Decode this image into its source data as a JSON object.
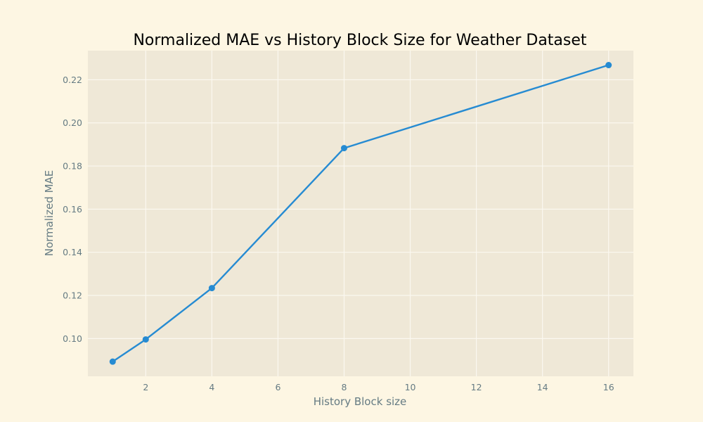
{
  "chart_data": {
    "type": "line",
    "title": "Normalized MAE vs History Block Size for Weather Dataset",
    "xlabel": "History Block size",
    "ylabel": "Normalized MAE",
    "x": [
      1,
      2,
      4,
      8,
      16
    ],
    "series": [
      {
        "values": [
          0.0893,
          0.0996,
          0.1234,
          0.1883,
          0.2268
        ]
      }
    ],
    "xlim": [
      0.25,
      16.75
    ],
    "ylim": [
      0.0825,
      0.2335
    ],
    "xticks": [
      2,
      4,
      6,
      8,
      10,
      12,
      14,
      16
    ],
    "yticks": [
      0.1,
      0.12,
      0.14,
      0.16,
      0.18,
      0.2,
      0.22
    ],
    "ytick_labels": [
      "0.10",
      "0.12",
      "0.14",
      "0.16",
      "0.18",
      "0.20",
      "0.22"
    ],
    "grid": true,
    "legend": "none",
    "colors": {
      "figure_background": "#fdf6e3",
      "plot_background": "#efe8d7",
      "grid": "#fbf8f0",
      "line": "#268bd2",
      "axis_text": "#657b83"
    }
  }
}
